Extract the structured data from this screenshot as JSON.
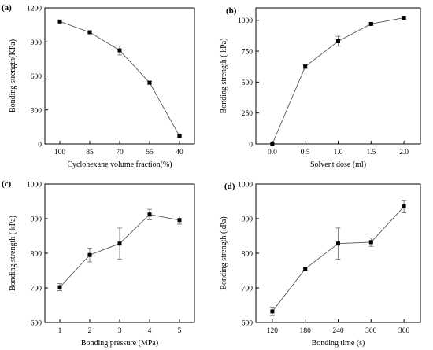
{
  "chart_data": [
    {
      "type": "line",
      "panel_label": "(a)",
      "xlabel": "Cyclohexane volume fraction(%)",
      "ylabel": "Bonding strength(KPa)",
      "x_categorical": true,
      "categories": [
        "100",
        "85",
        "70",
        "55",
        "40"
      ],
      "x": [
        100,
        85,
        70,
        55,
        40
      ],
      "values": [
        1080,
        985,
        825,
        540,
        70
      ],
      "errors": [
        0,
        8,
        40,
        12,
        8
      ],
      "ylim": [
        0,
        1200
      ],
      "yticks": [
        0,
        300,
        600,
        900,
        1200
      ]
    },
    {
      "type": "line",
      "panel_label": "(b)",
      "xlabel": "Solvent dose (ml)",
      "ylabel": "Bonding strength ( kPa)",
      "x_categorical": false,
      "x": [
        0.0,
        0.5,
        1.0,
        1.5,
        2.0
      ],
      "values": [
        0,
        625,
        830,
        970,
        1020
      ],
      "errors": [
        0,
        15,
        40,
        10,
        10
      ],
      "xlim": [
        -0.25,
        2.25
      ],
      "xticks": [
        0.0,
        0.5,
        1.0,
        1.5,
        2.0
      ],
      "xticklabels": [
        "0.0",
        "0.5",
        "1.0",
        "1.5",
        "2.0"
      ],
      "ylim": [
        0,
        1100
      ],
      "yticks": [
        0,
        250,
        500,
        750,
        1000
      ]
    },
    {
      "type": "line",
      "panel_label": "(c)",
      "xlabel": "Bonding pressure (MPa)",
      "ylabel": "Bonding strength ( kPa)",
      "x_categorical": false,
      "x": [
        1,
        2,
        3,
        4,
        5
      ],
      "values": [
        702,
        795,
        828,
        912,
        896
      ],
      "errors": [
        10,
        20,
        45,
        15,
        12
      ],
      "xlim": [
        0.5,
        5.5
      ],
      "xticks": [
        1,
        2,
        3,
        4,
        5
      ],
      "xticklabels": [
        "1",
        "2",
        "3",
        "4",
        "5"
      ],
      "ylim": [
        600,
        1000
      ],
      "yticks": [
        600,
        700,
        800,
        900,
        1000
      ]
    },
    {
      "type": "line",
      "panel_label": "(d)",
      "xlabel": "Bonding time (s)",
      "ylabel": "Bonding strength (kPa)",
      "x_categorical": false,
      "x": [
        120,
        180,
        240,
        300,
        360
      ],
      "values": [
        632,
        755,
        828,
        832,
        935
      ],
      "errors": [
        12,
        4,
        45,
        12,
        18
      ],
      "xlim": [
        90,
        390
      ],
      "xticks": [
        120,
        180,
        240,
        300,
        360
      ],
      "xticklabels": [
        "120",
        "180",
        "240",
        "300",
        "360"
      ],
      "ylim": [
        600,
        1000
      ],
      "yticks": [
        600,
        700,
        800,
        900,
        1000
      ]
    }
  ]
}
